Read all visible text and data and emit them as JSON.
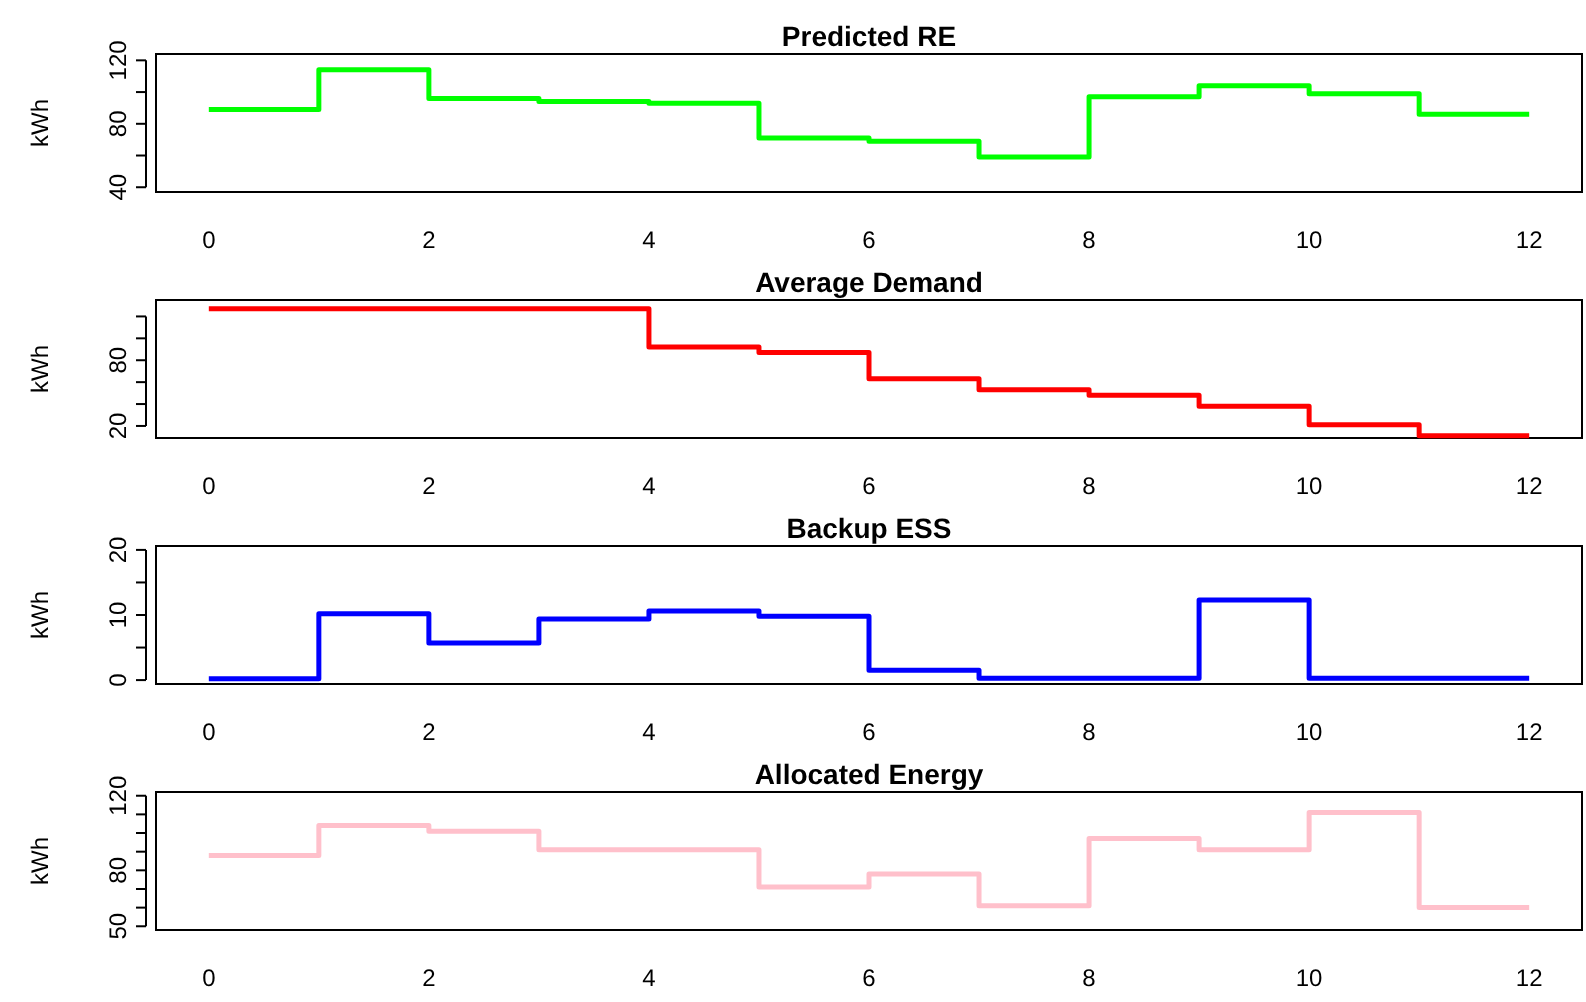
{
  "chart_data": [
    {
      "type": "step",
      "title": "Predicted RE",
      "ylabel": "kWh",
      "x": [
        0,
        1,
        2,
        3,
        4,
        5,
        6,
        7,
        8,
        9,
        10,
        11,
        12
      ],
      "xlim": [
        -0.48,
        12.48
      ],
      "xticks": [
        0,
        2,
        4,
        6,
        8,
        10,
        12
      ],
      "ylim": [
        37,
        124
      ],
      "yticks": [
        40,
        {
          "value": 60,
          "label": null
        },
        80,
        {
          "value": 100,
          "label": null
        },
        120
      ],
      "series": [
        {
          "color": "#00ff00",
          "values": [
            89,
            114,
            96,
            94,
            93,
            71,
            69,
            59,
            97,
            104,
            99,
            86,
            86
          ]
        }
      ]
    },
    {
      "type": "step",
      "title": "Average Demand",
      "ylabel": "kWh",
      "x": [
        0,
        1,
        2,
        3,
        4,
        5,
        6,
        7,
        8,
        9,
        10,
        11,
        12
      ],
      "xlim": [
        -0.48,
        12.48
      ],
      "xticks": [
        0,
        2,
        4,
        6,
        8,
        10,
        12
      ],
      "ylim": [
        9,
        135
      ],
      "yticks": [
        20,
        {
          "value": 40,
          "label": null
        },
        {
          "value": 60,
          "label": null
        },
        80,
        {
          "value": 100,
          "label": null
        },
        {
          "value": 120,
          "label": null
        }
      ],
      "series": [
        {
          "color": "#ff0000",
          "values": [
            127,
            127,
            127,
            127,
            92,
            87,
            63,
            53,
            48,
            38,
            21,
            11,
            11
          ]
        }
      ]
    },
    {
      "type": "step",
      "title": "Backup ESS",
      "ylabel": "kWh",
      "x": [
        0,
        1,
        2,
        3,
        4,
        5,
        6,
        7,
        8,
        9,
        10,
        11,
        12
      ],
      "xlim": [
        -0.48,
        12.48
      ],
      "xticks": [
        0,
        2,
        4,
        6,
        8,
        10,
        12
      ],
      "ylim": [
        -0.6,
        20.6
      ],
      "yticks": [
        0,
        {
          "value": 5,
          "label": null
        },
        10,
        {
          "value": 15,
          "label": null
        },
        20
      ],
      "series": [
        {
          "color": "#0000ff",
          "values": [
            0.2,
            10.2,
            5.7,
            9.4,
            10.6,
            9.8,
            1.5,
            0.3,
            0.3,
            12.3,
            0.3,
            0.3,
            0.3
          ]
        }
      ]
    },
    {
      "type": "step",
      "title": "Allocated Energy",
      "ylabel": "kWh",
      "x": [
        0,
        1,
        2,
        3,
        4,
        5,
        6,
        7,
        8,
        9,
        10,
        11,
        12
      ],
      "xlim": [
        -0.48,
        12.48
      ],
      "xticks": [
        0,
        2,
        4,
        6,
        8,
        10,
        12
      ],
      "ylim": [
        48,
        122
      ],
      "yticks": [
        50,
        {
          "value": 60,
          "label": null
        },
        {
          "value": 70,
          "label": null
        },
        80,
        {
          "value": 90,
          "label": null
        },
        {
          "value": 100,
          "label": null
        },
        {
          "value": 110,
          "label": null
        },
        120
      ],
      "series": [
        {
          "color": "#ffc0cb",
          "values": [
            88,
            104,
            101,
            91,
            91,
            71,
            78,
            61,
            97,
            91,
            111,
            60,
            60
          ]
        }
      ]
    }
  ]
}
